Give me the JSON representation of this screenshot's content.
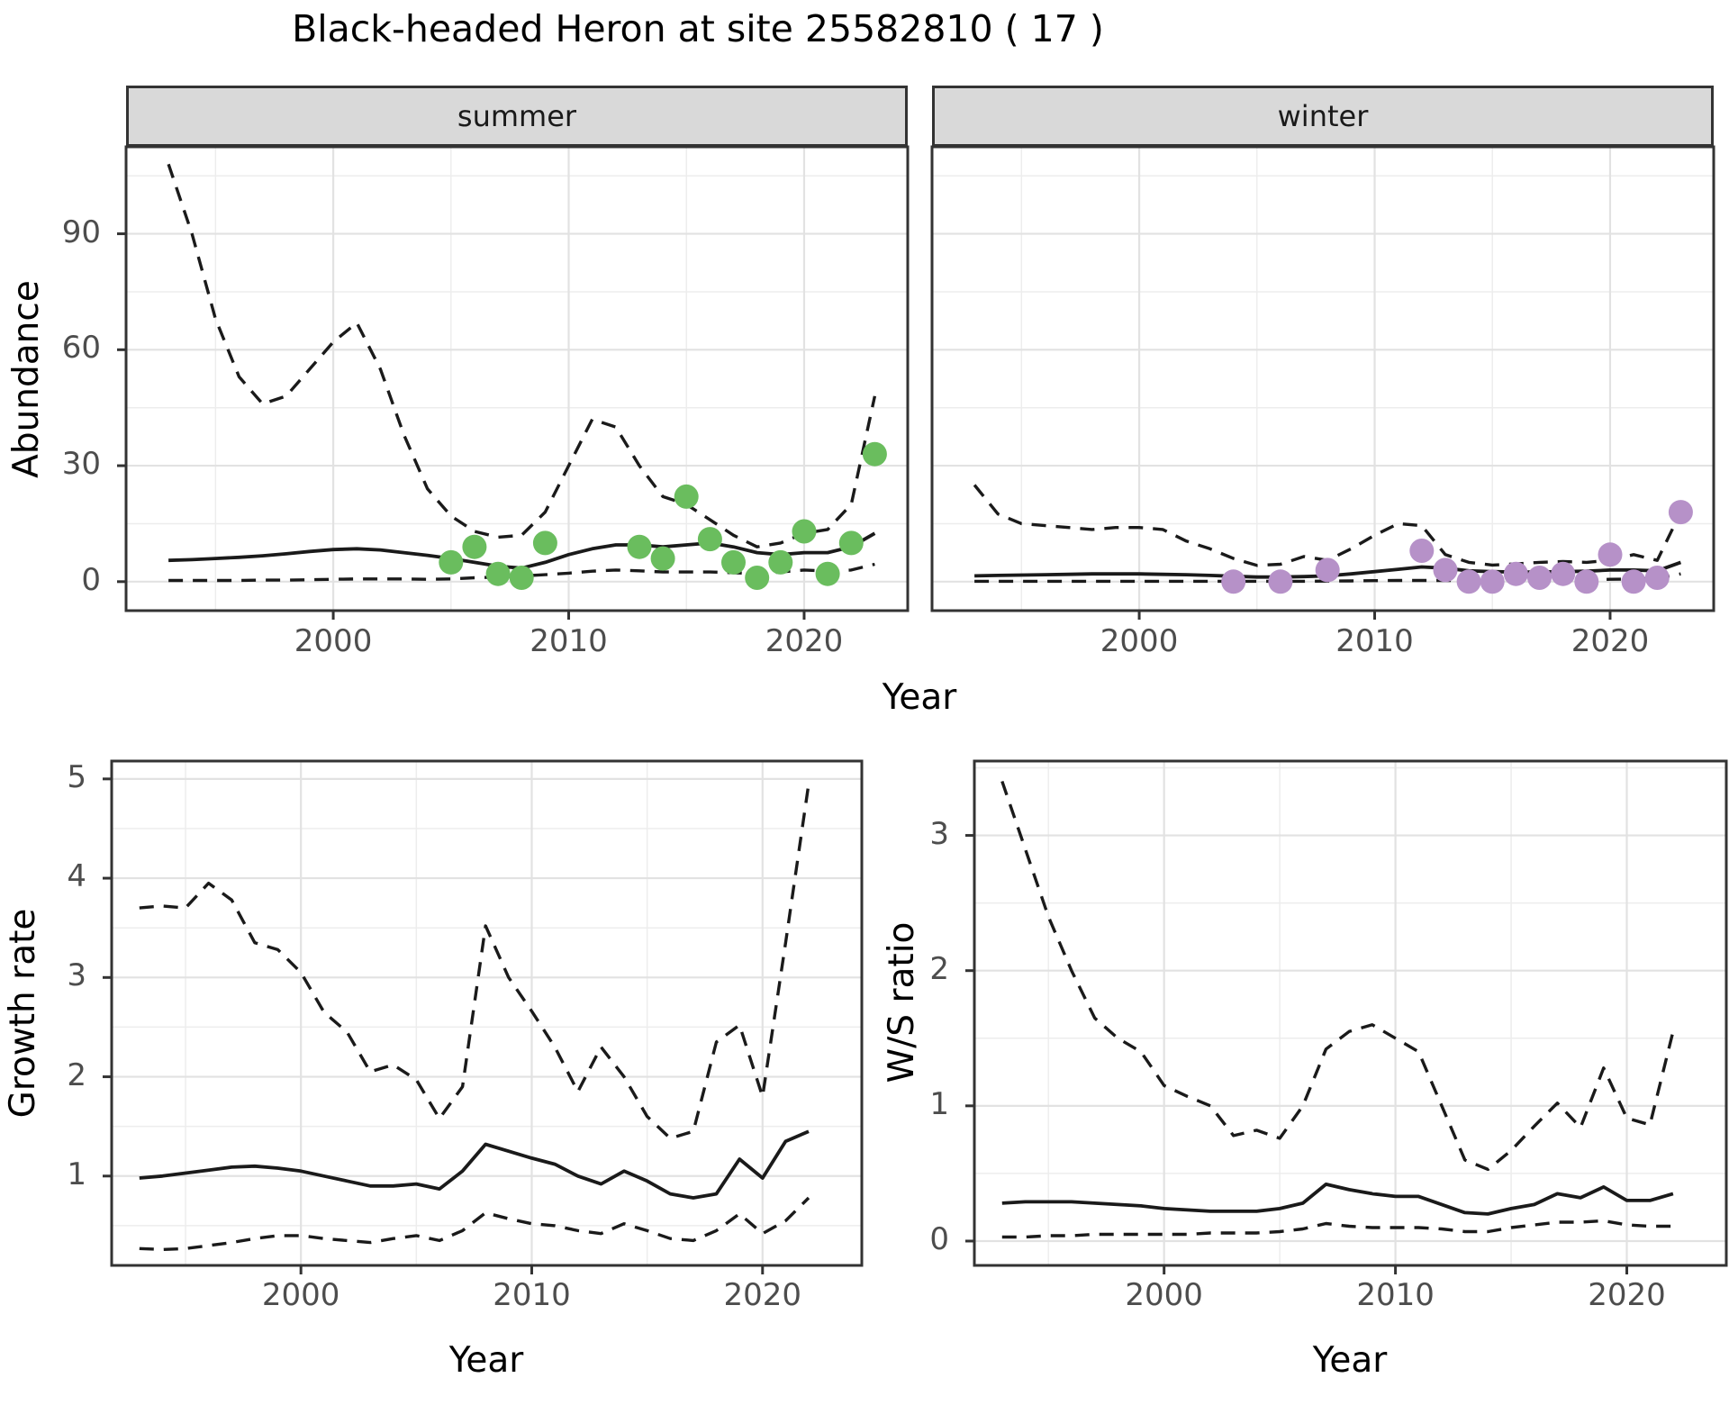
{
  "page": {
    "title": "Black-headed Heron at site 25582810 ( 17 )"
  },
  "facets": {
    "summer_label": "summer",
    "winter_label": "winter"
  },
  "axis_titles": {
    "abundance": "Abundance",
    "growth_rate": "Growth rate",
    "ws_ratio": "W/S ratio",
    "year_top": "Year",
    "year_bottom_left": "Year",
    "year_bottom_right": "Year"
  },
  "colors": {
    "summer_points": "#6ABD5E",
    "winter_points": "#B691C8",
    "line": "#1A1A1A",
    "grid_major": "#E2E2E2",
    "grid_minor": "#EDEDED",
    "strip_bg": "#D9D9D9",
    "panel_border": "#333333",
    "tick_text": "#4D4D4D",
    "background": "#FFFFFF"
  },
  "chart_data": [
    {
      "type": "line",
      "title": "summer",
      "xlabel": "Year",
      "ylabel": "Abundance",
      "xlim": [
        1991.2,
        2024.4
      ],
      "ylim": [
        -7.5,
        112.5
      ],
      "xticks": [
        2000,
        2010,
        2020
      ],
      "xminor": [
        1995,
        2005,
        2015
      ],
      "yticks": [
        0,
        30,
        60,
        90
      ],
      "yminor": [
        15,
        45,
        75,
        105
      ],
      "grid": true,
      "legend_position": "none",
      "x": [
        1993,
        1994,
        1995,
        1996,
        1997,
        1998,
        1999,
        2000,
        2001,
        2002,
        2003,
        2004,
        2005,
        2006,
        2007,
        2008,
        2009,
        2010,
        2011,
        2012,
        2013,
        2014,
        2015,
        2016,
        2017,
        2018,
        2019,
        2020,
        2021,
        2022,
        2023
      ],
      "series": [
        {
          "name": "median",
          "style": "solid",
          "values": [
            5.5,
            5.7,
            6.0,
            6.3,
            6.7,
            7.2,
            7.8,
            8.3,
            8.5,
            8.2,
            7.5,
            6.8,
            6.0,
            5.0,
            4.0,
            3.5,
            5.0,
            7.0,
            8.5,
            9.5,
            9.5,
            9.0,
            9.5,
            10.0,
            9.0,
            7.5,
            7.0,
            7.5,
            7.5,
            9.0,
            12.5
          ]
        },
        {
          "name": "upper_ci",
          "style": "dashed",
          "values": [
            108,
            90,
            68,
            53,
            46,
            48,
            55,
            62,
            67,
            55,
            38,
            24,
            17,
            13,
            11.5,
            12,
            18,
            30,
            42,
            40,
            30,
            22,
            20,
            16,
            12,
            9,
            10,
            12.5,
            13.5,
            20,
            48
          ]
        },
        {
          "name": "lower_ci",
          "style": "dashed",
          "values": [
            0.3,
            0.3,
            0.3,
            0.3,
            0.4,
            0.4,
            0.5,
            0.6,
            0.7,
            0.7,
            0.7,
            0.6,
            0.7,
            1.0,
            1.2,
            1.5,
            1.8,
            2.2,
            2.7,
            3.0,
            2.8,
            2.5,
            2.5,
            2.5,
            2.3,
            2.0,
            2.5,
            3.0,
            2.7,
            3.0,
            4.5
          ]
        }
      ],
      "points": {
        "name": "observed-count-summer",
        "color": "#6ABD5E",
        "data": [
          [
            2005,
            5
          ],
          [
            2006,
            9
          ],
          [
            2007,
            2
          ],
          [
            2008,
            1
          ],
          [
            2009,
            10
          ],
          [
            2013,
            9
          ],
          [
            2014,
            6
          ],
          [
            2015,
            22
          ],
          [
            2016,
            11
          ],
          [
            2017,
            5
          ],
          [
            2018,
            1
          ],
          [
            2019,
            5
          ],
          [
            2020,
            13
          ],
          [
            2021,
            2
          ],
          [
            2022,
            10
          ],
          [
            2023,
            33
          ]
        ]
      }
    },
    {
      "type": "line",
      "title": "winter",
      "xlabel": "Year",
      "ylabel": "Abundance",
      "xlim": [
        1991.2,
        2024.4
      ],
      "ylim": [
        -7.5,
        112.5
      ],
      "xticks": [
        2000,
        2010,
        2020
      ],
      "xminor": [
        1995,
        2005,
        2015
      ],
      "yticks": [
        0,
        30,
        60,
        90
      ],
      "yminor": [
        15,
        45,
        75,
        105
      ],
      "grid": true,
      "legend_position": "none",
      "x": [
        1993,
        1994,
        1995,
        1996,
        1997,
        1998,
        1999,
        2000,
        2001,
        2002,
        2003,
        2004,
        2005,
        2006,
        2007,
        2008,
        2009,
        2010,
        2011,
        2012,
        2013,
        2014,
        2015,
        2016,
        2017,
        2018,
        2019,
        2020,
        2021,
        2022,
        2023
      ],
      "series": [
        {
          "name": "median",
          "style": "solid",
          "values": [
            1.5,
            1.6,
            1.7,
            1.8,
            1.9,
            2.0,
            2.0,
            2.0,
            1.9,
            1.8,
            1.6,
            1.4,
            1.2,
            1.2,
            1.3,
            1.5,
            2.0,
            2.6,
            3.2,
            3.8,
            3.5,
            2.8,
            2.6,
            2.5,
            2.5,
            2.6,
            2.7,
            3.0,
            3.0,
            2.8,
            5.0
          ]
        },
        {
          "name": "upper_ci",
          "style": "dashed",
          "values": [
            25,
            17.5,
            15,
            14.5,
            14,
            13.5,
            14,
            14,
            13.5,
            10.5,
            8.5,
            6,
            4.2,
            4.5,
            6.5,
            5.5,
            8.5,
            12,
            15,
            14.5,
            7,
            5,
            4.3,
            4.6,
            5,
            5.2,
            5,
            5.5,
            7,
            5.5,
            18
          ]
        },
        {
          "name": "lower_ci",
          "style": "dashed",
          "values": [
            0.1,
            0.1,
            0.1,
            0.1,
            0.1,
            0.1,
            0.1,
            0.1,
            0.1,
            0.1,
            0.1,
            0.1,
            0.1,
            0.1,
            0.1,
            0.15,
            0.2,
            0.25,
            0.3,
            0.3,
            0.3,
            0.25,
            0.2,
            0.2,
            0.25,
            0.3,
            0.4,
            0.6,
            0.7,
            0.9,
            2.0
          ]
        }
      ],
      "points": {
        "name": "observed-count-winter",
        "color": "#B691C8",
        "data": [
          [
            2004,
            0
          ],
          [
            2006,
            0
          ],
          [
            2008,
            3
          ],
          [
            2012,
            8
          ],
          [
            2013,
            3
          ],
          [
            2014,
            0
          ],
          [
            2015,
            0
          ],
          [
            2016,
            2
          ],
          [
            2017,
            1
          ],
          [
            2018,
            2
          ],
          [
            2019,
            0
          ],
          [
            2020,
            7
          ],
          [
            2021,
            0
          ],
          [
            2022,
            1
          ],
          [
            2023,
            18
          ]
        ]
      }
    },
    {
      "type": "line",
      "title": "Growth rate",
      "xlabel": "Year",
      "ylabel": "Growth rate",
      "xlim": [
        1991.8,
        2024.3
      ],
      "ylim": [
        0.1,
        5.18
      ],
      "xticks": [
        2000,
        2010,
        2020
      ],
      "xminor": [
        1995,
        2005,
        2015
      ],
      "yticks": [
        1,
        2,
        3,
        4,
        5
      ],
      "yminor": [
        0.5,
        1.5,
        2.5,
        3.5,
        4.5
      ],
      "grid": true,
      "legend_position": "none",
      "x": [
        1993,
        1994,
        1995,
        1996,
        1997,
        1998,
        1999,
        2000,
        2001,
        2002,
        2003,
        2004,
        2005,
        2006,
        2007,
        2008,
        2009,
        2010,
        2011,
        2012,
        2013,
        2014,
        2015,
        2016,
        2017,
        2018,
        2019,
        2020,
        2021,
        2022
      ],
      "series": [
        {
          "name": "median",
          "style": "solid",
          "values": [
            0.98,
            1.0,
            1.03,
            1.06,
            1.09,
            1.1,
            1.08,
            1.05,
            1.0,
            0.95,
            0.9,
            0.9,
            0.92,
            0.87,
            1.05,
            1.32,
            1.25,
            1.18,
            1.12,
            1.0,
            0.92,
            1.05,
            0.95,
            0.82,
            0.78,
            0.82,
            1.17,
            0.98,
            1.35,
            1.45
          ]
        },
        {
          "name": "upper_ci",
          "style": "dashed",
          "values": [
            3.7,
            3.72,
            3.7,
            3.95,
            3.78,
            3.35,
            3.28,
            3.05,
            2.65,
            2.45,
            2.05,
            2.12,
            1.97,
            1.58,
            1.9,
            3.52,
            3.0,
            2.66,
            2.3,
            1.85,
            2.3,
            2.0,
            1.6,
            1.38,
            1.45,
            2.35,
            2.52,
            1.8,
            3.35,
            4.95
          ]
        },
        {
          "name": "lower_ci",
          "style": "dashed",
          "values": [
            0.27,
            0.26,
            0.27,
            0.3,
            0.33,
            0.37,
            0.4,
            0.4,
            0.37,
            0.35,
            0.33,
            0.37,
            0.4,
            0.35,
            0.45,
            0.63,
            0.57,
            0.52,
            0.5,
            0.45,
            0.42,
            0.52,
            0.45,
            0.37,
            0.35,
            0.45,
            0.62,
            0.42,
            0.55,
            0.78
          ]
        }
      ]
    },
    {
      "type": "line",
      "title": "W/S ratio",
      "xlabel": "Year",
      "ylabel": "W/S ratio",
      "xlim": [
        1991.8,
        2024.3
      ],
      "ylim": [
        -0.18,
        3.55
      ],
      "xticks": [
        2000,
        2010,
        2020
      ],
      "xminor": [
        1995,
        2005,
        2015
      ],
      "yticks": [
        0,
        1,
        2,
        3
      ],
      "yminor": [
        0.5,
        1.5,
        2.5,
        3.5
      ],
      "grid": true,
      "legend_position": "none",
      "x": [
        1993,
        1994,
        1995,
        1996,
        1997,
        1998,
        1999,
        2000,
        2001,
        2002,
        2003,
        2004,
        2005,
        2006,
        2007,
        2008,
        2009,
        2010,
        2011,
        2012,
        2013,
        2014,
        2015,
        2016,
        2017,
        2018,
        2019,
        2020,
        2021,
        2022
      ],
      "series": [
        {
          "name": "median",
          "style": "solid",
          "values": [
            0.28,
            0.29,
            0.29,
            0.29,
            0.28,
            0.27,
            0.26,
            0.24,
            0.23,
            0.22,
            0.22,
            0.22,
            0.24,
            0.28,
            0.42,
            0.38,
            0.35,
            0.33,
            0.33,
            0.27,
            0.21,
            0.2,
            0.24,
            0.27,
            0.35,
            0.32,
            0.4,
            0.3,
            0.3,
            0.35
          ]
        },
        {
          "name": "upper_ci",
          "style": "dashed",
          "values": [
            3.4,
            2.9,
            2.4,
            2.0,
            1.65,
            1.5,
            1.4,
            1.15,
            1.07,
            1.0,
            0.78,
            0.82,
            0.76,
            1.0,
            1.42,
            1.55,
            1.6,
            1.5,
            1.4,
            1.0,
            0.6,
            0.53,
            0.67,
            0.85,
            1.02,
            0.84,
            1.28,
            0.91,
            0.86,
            1.55
          ]
        },
        {
          "name": "lower_ci",
          "style": "dashed",
          "values": [
            0.03,
            0.03,
            0.04,
            0.04,
            0.05,
            0.05,
            0.05,
            0.05,
            0.05,
            0.06,
            0.06,
            0.06,
            0.07,
            0.09,
            0.13,
            0.11,
            0.1,
            0.1,
            0.1,
            0.09,
            0.07,
            0.07,
            0.1,
            0.12,
            0.14,
            0.14,
            0.15,
            0.12,
            0.11,
            0.11
          ]
        }
      ]
    }
  ]
}
